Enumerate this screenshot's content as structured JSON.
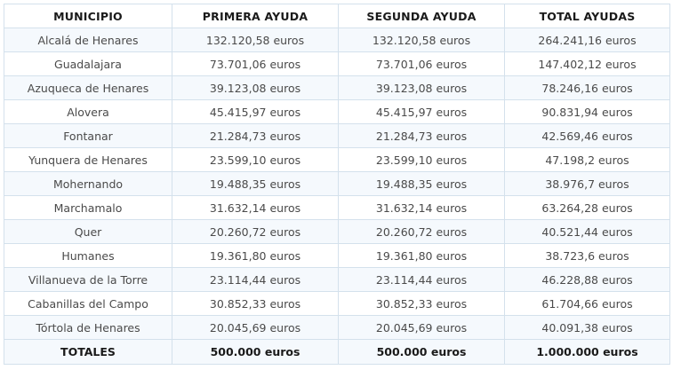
{
  "headers": [
    "MUNICIPIO",
    "PRIMERA AYUDA",
    "SEGUNDA AYUDA",
    "TOTAL AYUDAS"
  ],
  "rows": [
    [
      "Alcalá de Henares",
      "132.120,58 euros",
      "132.120,58 euros",
      "264.241,16 euros"
    ],
    [
      "Guadalajara",
      "73.701,06 euros",
      "73.701,06 euros",
      "147.402,12 euros"
    ],
    [
      "Azuqueca de Henares",
      "39.123,08 euros",
      "39.123,08 euros",
      "78.246,16 euros"
    ],
    [
      "Alovera",
      "45.415,97 euros",
      "45.415,97 euros",
      "90.831,94 euros"
    ],
    [
      "Fontanar",
      "21.284,73 euros",
      "21.284,73 euros",
      "42.569,46 euros"
    ],
    [
      "Yunquera de Henares",
      "23.599,10 euros",
      "23.599,10 euros",
      "47.198,2 euros"
    ],
    [
      "Mohernando",
      "19.488,35 euros",
      "19.488,35 euros",
      "38.976,7 euros"
    ],
    [
      "Marchamalo",
      "31.632,14 euros",
      "31.632,14 euros",
      "63.264,28 euros"
    ],
    [
      "Quer",
      "20.260,72 euros",
      "20.260,72 euros",
      "40.521,44 euros"
    ],
    [
      "Humanes",
      "19.361,80 euros",
      "19.361,80 euros",
      "38.723,6 euros"
    ],
    [
      "Villanueva de la Torre",
      "23.114,44 euros",
      "23.114,44 euros",
      "46.228,88 euros"
    ],
    [
      "Cabanillas del Campo",
      "30.852,33 euros",
      "30.852,33 euros",
      "61.704,66 euros"
    ],
    [
      "Tórtola de Henares",
      "20.045,69 euros",
      "20.045,69 euros",
      "40.091,38 euros"
    ]
  ],
  "totals": [
    "TOTALES",
    "500.000 euros",
    "500.000 euros",
    "1.000.000 euros"
  ],
  "colors": {
    "border": "#d4e1ec",
    "stripe": "#f5f9fd",
    "text": "#4a4a4a",
    "header_text": "#1a1a1a"
  }
}
